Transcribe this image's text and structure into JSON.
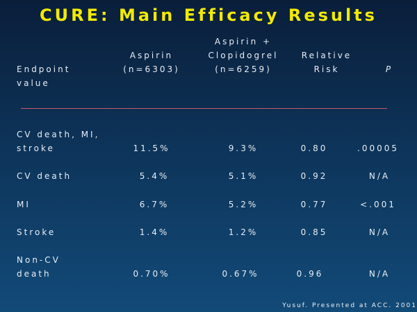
{
  "title": "CURE: Main Efficacy Results",
  "headers": {
    "endpoint_line1": "Endpoint",
    "endpoint_line2": "value",
    "aspirin_line1": "Aspirin",
    "aspirin_line2": "(n=6303)",
    "combo_line1": "Aspirin +",
    "combo_line2": "Clopidogrel",
    "combo_line3": "(n=6259)",
    "rr_line1": "Relative",
    "rr_line2": "Risk",
    "p": "P"
  },
  "rows": [
    {
      "endpoint1": "CV death, MI,",
      "endpoint2": "stroke",
      "aspirin": "11.5%",
      "combo": "9.3%",
      "rr": "0.80",
      "p": ".00005"
    },
    {
      "endpoint1": "CV death",
      "endpoint2": "",
      "aspirin": "5.4%",
      "combo": "5.1%",
      "rr": "0.92",
      "p": "N/A"
    },
    {
      "endpoint1": "MI",
      "endpoint2": "",
      "aspirin": "6.7%",
      "combo": "5.2%",
      "rr": "0.77",
      "p": "<.001"
    },
    {
      "endpoint1": "Stroke",
      "endpoint2": "",
      "aspirin": "1.4%",
      "combo": "1.2%",
      "rr": "0.85",
      "p": "N/A"
    },
    {
      "endpoint1": "Non-CV",
      "endpoint2": "death",
      "aspirin": "0.70%",
      "combo": "0.67%",
      "rr": "0.96",
      "p": "N/A"
    }
  ],
  "footer": "Yusuf. Presented at ACC. 2001",
  "colors": {
    "title": "#f2ea00",
    "background": "#0d3358",
    "rule": "#c85a6a",
    "text": "#e8eef6"
  }
}
